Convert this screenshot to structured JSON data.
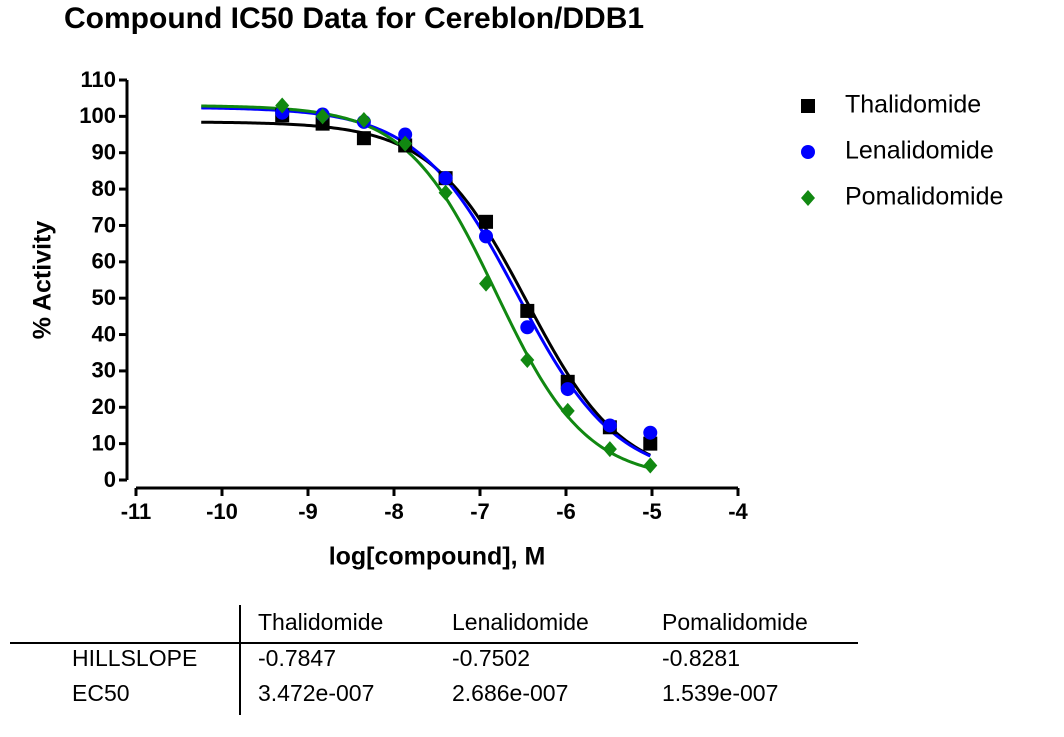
{
  "chart_data": {
    "type": "dose-response",
    "title": "Compound IC50 Data for Cereblon/DDB1",
    "x_label": "log[compound], M",
    "y_label": "% Activity",
    "xlim": [
      -11,
      -4
    ],
    "xticks": [
      -11,
      -10,
      -9,
      -8,
      -7,
      -6,
      -5,
      -4
    ],
    "ylim": [
      0,
      110
    ],
    "yticks": [
      0,
      10,
      20,
      30,
      40,
      50,
      60,
      70,
      80,
      90,
      100,
      110
    ],
    "legend": "right",
    "x": [
      -9.3,
      -8.83,
      -8.35,
      -7.87,
      -7.4,
      -6.93,
      -6.45,
      -5.98,
      -5.49,
      -5.02
    ],
    "series": [
      {
        "name": "Thalidomide",
        "color": "#000000",
        "marker": "square",
        "top": 98.5,
        "bottom": 0,
        "values": [
          100.3,
          98,
          94,
          92,
          83,
          71,
          46.5,
          27,
          14.5,
          10
        ]
      },
      {
        "name": "Lenalidomide",
        "color": "#0000ff",
        "marker": "circle",
        "top": 102.5,
        "bottom": 0,
        "values": [
          101,
          100.5,
          98.5,
          95,
          83,
          67,
          42,
          25,
          15,
          13
        ]
      },
      {
        "name": "Pomalidomide",
        "color": "#118811",
        "marker": "diamond",
        "top": 103,
        "bottom": 0,
        "values": [
          103,
          100,
          99,
          92.5,
          79,
          54,
          33,
          19,
          8.5,
          4
        ]
      }
    ]
  },
  "table": {
    "columns": [
      "Thalidomide",
      "Lenalidomide",
      "Pomalidomide"
    ],
    "rows": [
      [
        "HILLSLOPE",
        "-0.7847",
        "-0.7502",
        "-0.8281"
      ],
      [
        "EC50",
        "3.472e-007",
        "2.686e-007",
        "1.539e-007"
      ]
    ]
  }
}
